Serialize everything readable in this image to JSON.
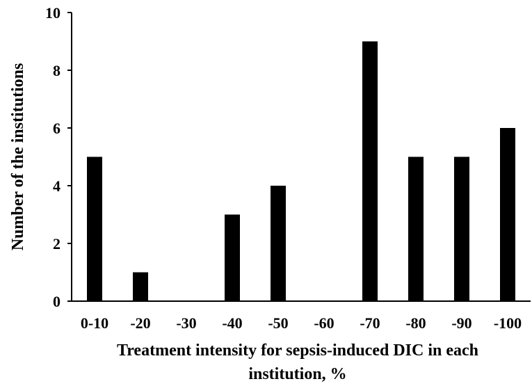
{
  "chart_data": {
    "type": "bar",
    "title": "",
    "xlabel_lines": [
      "Treatment intensity for sepsis-induced DIC in each",
      "institution, %"
    ],
    "ylabel": "Number of the institutions",
    "categories": [
      "0-10",
      "-20",
      "-30",
      "-40",
      "-50",
      "-60",
      "-70",
      "-80",
      "-90",
      "-100"
    ],
    "values": [
      5,
      1,
      0,
      3,
      4,
      0,
      9,
      5,
      5,
      6
    ],
    "ylim": [
      0,
      10
    ],
    "yticks": [
      0,
      2,
      4,
      6,
      8,
      10
    ],
    "grid": false,
    "bar_color": "#000000"
  }
}
